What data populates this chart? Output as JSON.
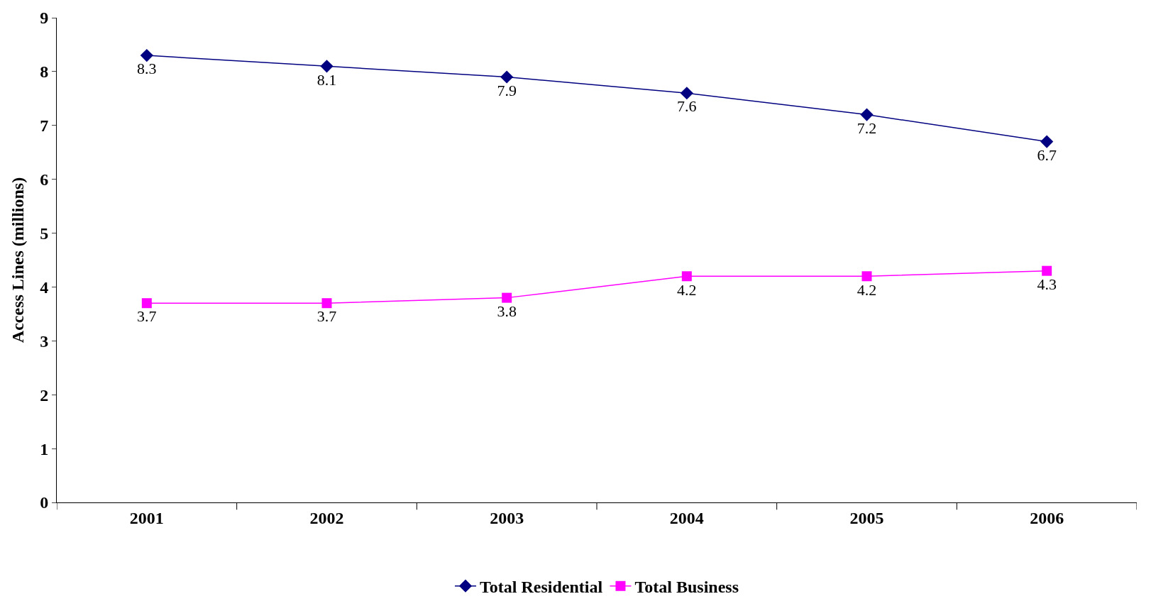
{
  "chart_data": {
    "type": "line",
    "ylabel": "Access Lines (millions)",
    "categories": [
      "2001",
      "2002",
      "2003",
      "2004",
      "2005",
      "2006"
    ],
    "series": [
      {
        "name": "Total Residential",
        "color": "#000080",
        "marker": "diamond",
        "values": [
          8.3,
          8.1,
          7.9,
          7.6,
          7.2,
          6.7
        ]
      },
      {
        "name": "Total Business",
        "color": "#ff00ff",
        "marker": "square",
        "values": [
          3.7,
          3.7,
          3.8,
          4.2,
          4.2,
          4.3
        ]
      }
    ],
    "ylim": [
      0,
      9
    ],
    "yticks": [
      0,
      1,
      2,
      3,
      4,
      5,
      6,
      7,
      8,
      9
    ],
    "legend": "bottom",
    "data_labels": true,
    "line_style": "solid"
  }
}
